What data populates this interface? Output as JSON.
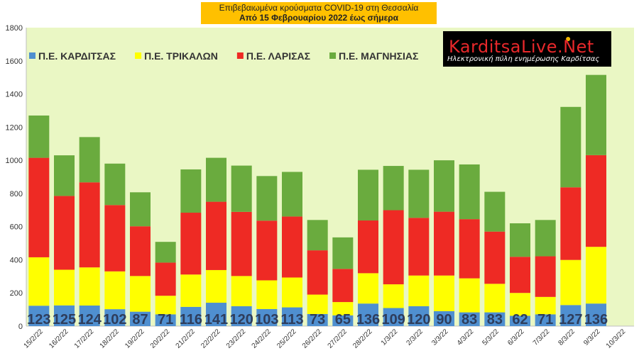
{
  "title": {
    "line1": "Επιβεβαιωμένα κρούσματα COVID-19 στη Θεσσαλία",
    "line2": "Από 15 Φεβρουαρίου 2022 έως σήμερα"
  },
  "logo": {
    "brand": "KarditsaLive.Net",
    "tagline": "Ηλεκτρονική πύλη ενημέρωσης Καρδίτσας"
  },
  "colors": {
    "plot_bg": "#eaf7c4",
    "karditsa": "#4f8fd0",
    "trikala": "#ffff00",
    "larisa": "#ee2a24",
    "magnisia": "#6aab3e",
    "label_text": "#2e3d5c"
  },
  "chart_data": {
    "type": "bar",
    "stacked": true,
    "legend_position": "top-left",
    "grid": false,
    "ylim": [
      0,
      1800
    ],
    "yticks": [
      0,
      200,
      400,
      600,
      800,
      1000,
      1200,
      1400,
      1600,
      1800
    ],
    "categories": [
      "15/2/22",
      "16/2/22",
      "17/2/22",
      "18/2/22",
      "19/2/22",
      "20/2/22",
      "21/2/22",
      "22/2/22",
      "23/2/22",
      "24/2/22",
      "25/2/22",
      "26/2/22",
      "27/2/22",
      "28/2/22",
      "1/3/22",
      "2/3/22",
      "3/3/22",
      "4/3/22",
      "5/3/22",
      "6/3/22",
      "7/3/22",
      "8/3/22",
      "9/3/22",
      "10/3/22"
    ],
    "series": [
      {
        "name": "Π.Ε. ΚΑΡΔΙΤΣΑΣ",
        "key": "karditsa",
        "values": [
          123,
          125,
          124,
          102,
          87,
          71,
          116,
          141,
          120,
          103,
          113,
          73,
          65,
          136,
          109,
          120,
          90,
          83,
          83,
          62,
          71,
          127,
          136,
          0
        ]
      },
      {
        "name": "Π.Ε. ΤΡΙΚΑΛΩΝ",
        "key": "trikala",
        "values": [
          292,
          215,
          230,
          228,
          215,
          112,
          195,
          197,
          182,
          173,
          180,
          117,
          80,
          183,
          143,
          185,
          215,
          205,
          172,
          138,
          105,
          272,
          342,
          0
        ]
      },
      {
        "name": "Π.Ε. ΛΑΡΙΣΑΣ",
        "key": "larisa",
        "values": [
          600,
          445,
          513,
          400,
          300,
          200,
          373,
          412,
          387,
          360,
          368,
          267,
          200,
          318,
          447,
          348,
          385,
          357,
          315,
          218,
          245,
          438,
          553,
          0
        ]
      },
      {
        "name": "Π.Ε. ΜΑΓΝΗΣΙΑΣ",
        "key": "magnisia",
        "values": [
          255,
          245,
          273,
          250,
          205,
          125,
          261,
          265,
          279,
          269,
          269,
          183,
          190,
          306,
          267,
          290,
          310,
          330,
          240,
          202,
          219,
          485,
          484,
          0
        ]
      }
    ],
    "data_labels": {
      "series": "Π.Ε. ΚΑΡΔΙΤΣΑΣ",
      "values": [
        123,
        125,
        124,
        102,
        87,
        71,
        116,
        141,
        120,
        103,
        113,
        73,
        65,
        136,
        109,
        120,
        90,
        83,
        83,
        62,
        71,
        127,
        136,
        null
      ]
    }
  }
}
